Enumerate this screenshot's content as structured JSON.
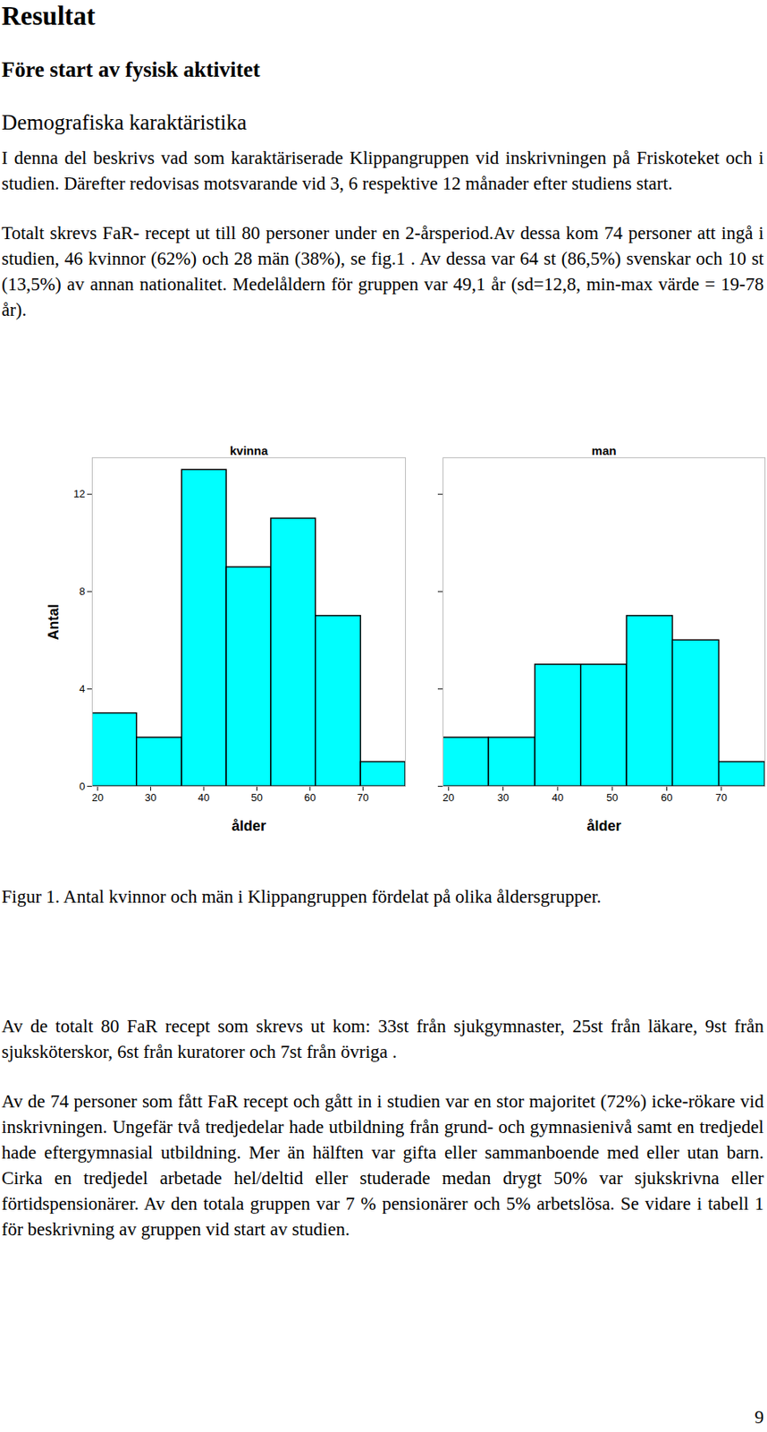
{
  "document": {
    "heading": "Resultat",
    "subheading": "Före start av fysisk aktivitet",
    "section": "Demografiska karaktäristika",
    "paragraphs_before": [
      "I denna del beskrivs vad som karaktäriserade Klippangruppen vid inskrivningen på Friskoteket och i studien. Därefter redovisas motsvarande vid 3, 6 respektive 12 månader efter studiens start.",
      "Totalt skrevs FaR- recept ut till 80 personer under en 2-årsperiod.Av dessa kom 74 personer att ingå i studien, 46 kvinnor (62%) och 28 män (38%), se fig.1 . Av dessa var 64 st (86,5%) svenskar och 10 st (13,5%) av annan nationalitet. Medelåldern för gruppen var 49,1 år (sd=12,8, min-max värde = 19-78 år)."
    ],
    "caption": "Figur 1. Antal kvinnor och män i Klippangruppen fördelat på olika åldersgrupper.",
    "paragraphs_after": [
      "Av de totalt 80 FaR recept som skrevs ut kom: 33st från sjukgymnaster, 25st från läkare, 9st från sjuksköterskor, 6st från kuratorer och 7st från övriga .",
      "Av de 74 personer som fått FaR recept och gått in i studien var en stor majoritet (72%) icke-rökare vid inskrivningen. Ungefär två tredjedelar hade utbildning från grund- och gymnasienivå samt en tredjedel hade eftergymnasial utbildning. Mer än hälften var gifta eller sammanboende med eller utan barn. Cirka en tredjedel arbetade hel/deltid eller studerade medan drygt 50% var sjukskrivna eller förtidspensionärer. Av den totala gruppen var 7 % pensionärer och 5% arbetslösa. Se vidare i tabell 1 för beskrivning av gruppen vid start av studien."
    ],
    "page_number": "9"
  },
  "chart_data": [
    {
      "type": "histogram",
      "title": "kvinna",
      "xlabel": "ålder",
      "ylabel": "Antal",
      "bins": [
        19,
        27.4,
        35.9,
        44.3,
        52.7,
        61.1,
        69.6,
        78
      ],
      "values": [
        3,
        2,
        13,
        9,
        11,
        7,
        1
      ],
      "color": "#00ffff",
      "xlim": [
        19,
        78
      ],
      "ylim": [
        0,
        13.5
      ],
      "xticks": [
        20,
        30,
        40,
        50,
        60,
        70
      ],
      "yticks": [
        0,
        4,
        8,
        12
      ]
    },
    {
      "type": "histogram",
      "title": "man",
      "xlabel": "ålder",
      "bins": [
        19,
        27.4,
        35.9,
        44.3,
        52.7,
        61.1,
        69.6,
        78
      ],
      "values": [
        2,
        2,
        5,
        5,
        7,
        6,
        1
      ],
      "color": "#00ffff",
      "xlim": [
        19,
        78
      ],
      "ylim": [
        0,
        13.5
      ],
      "xticks": [
        20,
        30,
        40,
        50,
        60,
        70
      ],
      "yticks": [
        0,
        4,
        8,
        12
      ],
      "tick_labels": "x"
    }
  ]
}
